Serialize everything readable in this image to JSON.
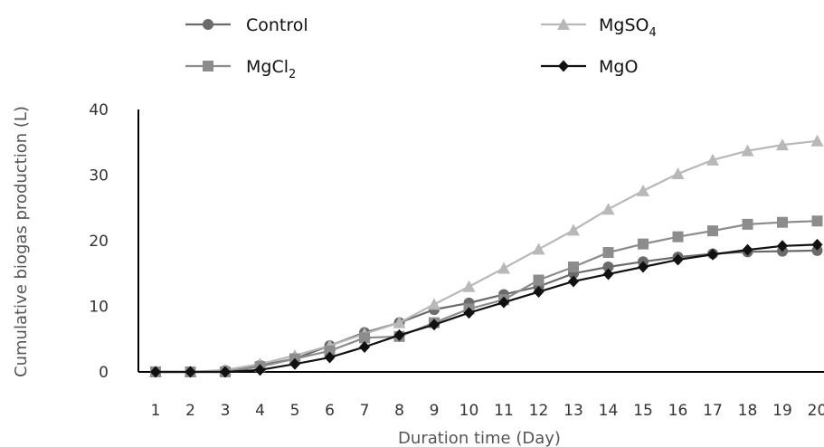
{
  "chart_data": {
    "type": "line",
    "xlabel": "Duration time (Day)",
    "ylabel": "Cumulative biogas production (L)",
    "ylim": [
      0,
      40
    ],
    "yticks": [
      0,
      10,
      20,
      30,
      40
    ],
    "x": [
      1,
      2,
      3,
      4,
      5,
      6,
      7,
      8,
      9,
      10,
      11,
      12,
      13,
      14,
      15,
      16,
      17,
      18,
      19,
      20
    ],
    "grid": false,
    "legend_position": "top",
    "series": [
      {
        "name": "Control",
        "sub": "",
        "marker": "circle",
        "color": "#6b6b6b",
        "values": [
          0,
          0,
          0.2,
          1,
          2,
          4,
          6,
          7.5,
          9.5,
          10.5,
          11.8,
          13,
          15,
          16,
          16.8,
          17.5,
          18,
          18.3,
          18.4,
          18.5
        ]
      },
      {
        "name": "MgSO",
        "sub": "4",
        "marker": "triangle",
        "color": "#b8b8b8",
        "values": [
          0,
          0,
          0.3,
          1.2,
          2.5,
          4,
          5.8,
          7.5,
          10.3,
          13,
          15.8,
          18.7,
          21.6,
          24.8,
          27.6,
          30.2,
          32.3,
          33.7,
          34.6,
          35.2
        ]
      },
      {
        "name": "MgCl",
        "sub": "2",
        "marker": "square",
        "color": "#8c8c8c",
        "values": [
          0,
          0,
          0,
          0.8,
          2,
          3.2,
          5.2,
          5.4,
          7.5,
          9.6,
          11,
          14,
          16,
          18.2,
          19.5,
          20.6,
          21.5,
          22.5,
          22.8,
          23
        ]
      },
      {
        "name": "MgO",
        "sub": "",
        "marker": "diamond",
        "color": "#111111",
        "values": [
          0,
          0,
          0,
          0.3,
          1.2,
          2.2,
          3.8,
          5.6,
          7.2,
          9,
          10.6,
          12.2,
          13.8,
          14.9,
          16,
          17.1,
          17.9,
          18.6,
          19.2,
          19.4
        ]
      }
    ]
  }
}
